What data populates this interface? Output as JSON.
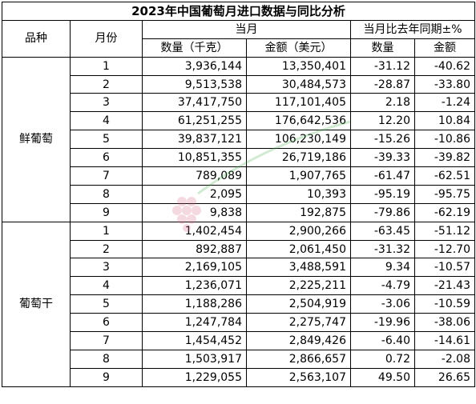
{
  "title": "2023年中国葡萄月进口数据与同比分析",
  "headers": {
    "variety": "品种",
    "month": "月份",
    "current_month": "当月",
    "yoy": "当月比去年同期±%",
    "quantity": "数量（千克）",
    "amount": "金额（美元）",
    "qty_pct": "数量",
    "amt_pct": "金额"
  },
  "groups": [
    {
      "name": "鲜葡萄",
      "rows": [
        {
          "month": "1",
          "quantity": "3,936,144",
          "amount": "13,350,401",
          "qty_pct": "-31.12",
          "amt_pct": "-40.62"
        },
        {
          "month": "2",
          "quantity": "9,513,538",
          "amount": "30,484,573",
          "qty_pct": "-28.87",
          "amt_pct": "-33.80"
        },
        {
          "month": "3",
          "quantity": "37,417,750",
          "amount": "117,101,405",
          "qty_pct": "2.18",
          "amt_pct": "-1.24"
        },
        {
          "month": "4",
          "quantity": "61,251,255",
          "amount": "176,642,536",
          "qty_pct": "12.20",
          "amt_pct": "10.84"
        },
        {
          "month": "5",
          "quantity": "39,837,121",
          "amount": "106,230,149",
          "qty_pct": "-15.26",
          "amt_pct": "-10.86"
        },
        {
          "month": "6",
          "quantity": "10,851,355",
          "amount": "26,719,186",
          "qty_pct": "-39.33",
          "amt_pct": "-39.82"
        },
        {
          "month": "7",
          "quantity": "789,089",
          "amount": "1,907,765",
          "qty_pct": "-61.47",
          "amt_pct": "-62.51"
        },
        {
          "month": "8",
          "quantity": "2,095",
          "amount": "10,393",
          "qty_pct": "-95.19",
          "amt_pct": "-95.75"
        },
        {
          "month": "9",
          "quantity": "9,838",
          "amount": "192,875",
          "qty_pct": "-79.86",
          "amt_pct": "-62.19"
        }
      ]
    },
    {
      "name": "葡萄干",
      "rows": [
        {
          "month": "1",
          "quantity": "1,402,454",
          "amount": "2,900,266",
          "qty_pct": "-63.45",
          "amt_pct": "-51.12"
        },
        {
          "month": "2",
          "quantity": "892,887",
          "amount": "2,061,450",
          "qty_pct": "-31.32",
          "amt_pct": "-12.70"
        },
        {
          "month": "3",
          "quantity": "2,169,105",
          "amount": "3,488,591",
          "qty_pct": "9.34",
          "amt_pct": "-10.57"
        },
        {
          "month": "4",
          "quantity": "1,236,071",
          "amount": "2,225,211",
          "qty_pct": "-4.79",
          "amt_pct": "-21.43"
        },
        {
          "month": "5",
          "quantity": "1,188,286",
          "amount": "2,504,919",
          "qty_pct": "-3.06",
          "amt_pct": "-10.59"
        },
        {
          "month": "6",
          "quantity": "1,247,784",
          "amount": "2,275,747",
          "qty_pct": "-19.96",
          "amt_pct": "-38.06"
        },
        {
          "month": "7",
          "quantity": "1,454,452",
          "amount": "2,849,426",
          "qty_pct": "-6.40",
          "amt_pct": "-14.61"
        },
        {
          "month": "8",
          "quantity": "1,503,917",
          "amount": "2,866,657",
          "qty_pct": "0.72",
          "amt_pct": "-2.08"
        },
        {
          "month": "9",
          "quantity": "1,229,055",
          "amount": "2,563,107",
          "qty_pct": "49.50",
          "amt_pct": "26.65"
        }
      ]
    }
  ]
}
